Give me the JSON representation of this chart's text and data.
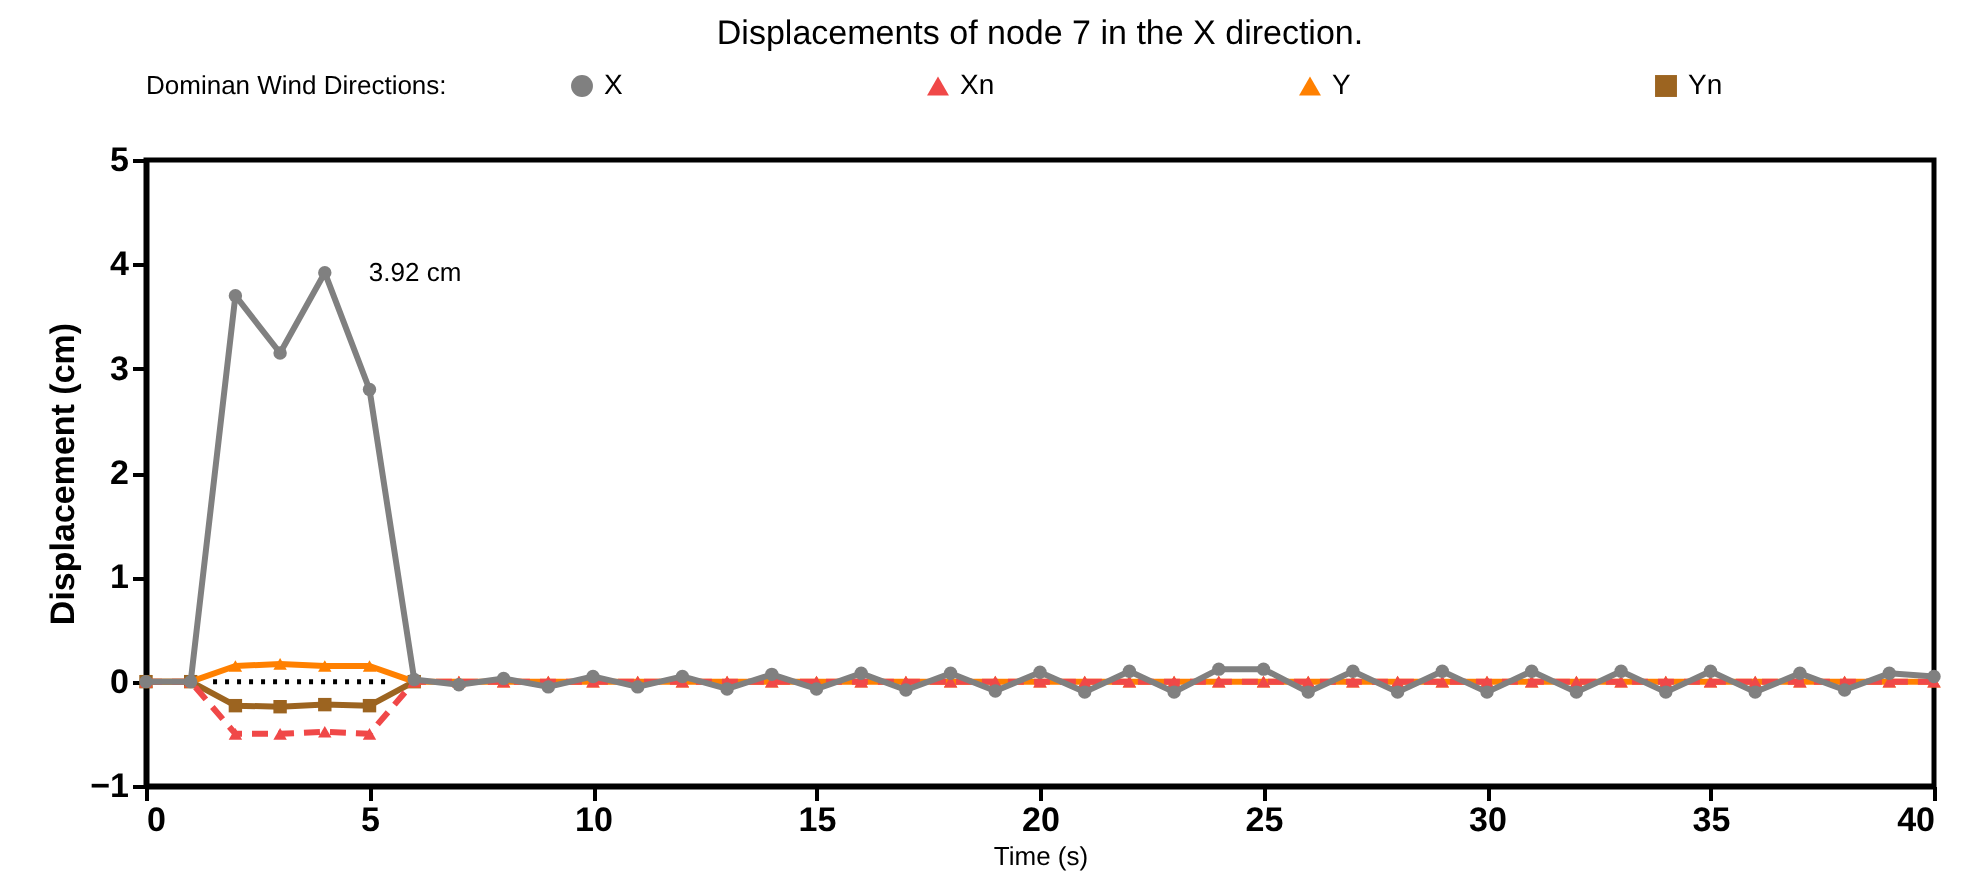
{
  "chart_data": {
    "type": "line",
    "title": "Displacements of node 7 in the X direction.",
    "xlabel": "Time (s)",
    "ylabel": "Displacement (cm)",
    "legend_title": "Dominan Wind Directions:",
    "x": [
      0,
      1,
      2,
      3,
      4,
      5,
      6,
      7,
      8,
      9,
      10,
      11,
      12,
      13,
      14,
      15,
      16,
      17,
      18,
      19,
      20,
      21,
      22,
      23,
      24,
      25,
      26,
      27,
      28,
      29,
      30,
      31,
      32,
      33,
      34,
      35,
      36,
      37,
      38,
      39,
      40
    ],
    "series": [
      {
        "name": "X",
        "color": "#808080",
        "marker": "circle",
        "line_style": "solid",
        "values": [
          0,
          0,
          3.7,
          3.15,
          3.92,
          2.8,
          0.02,
          -0.03,
          0.03,
          -0.05,
          0.05,
          -0.05,
          0.05,
          -0.07,
          0.07,
          -0.07,
          0.08,
          -0.08,
          0.08,
          -0.09,
          0.09,
          -0.1,
          0.1,
          -0.1,
          0.12,
          0.12,
          -0.1,
          0.1,
          -0.1,
          0.1,
          -0.1,
          0.1,
          -0.1,
          0.1,
          -0.1,
          0.1,
          -0.1,
          0.08,
          -0.08,
          0.08,
          0.05
        ]
      },
      {
        "name": "Xn",
        "color": "#f04848",
        "marker": "triangle",
        "line_style": "dashed",
        "values": [
          0,
          0,
          -0.5,
          -0.5,
          -0.48,
          -0.5,
          0,
          0,
          0,
          0,
          0,
          0,
          0,
          0,
          0,
          0,
          0,
          0,
          0,
          0,
          0,
          0,
          0,
          0,
          0,
          0,
          0,
          0,
          0,
          0,
          0,
          0,
          0,
          0,
          0,
          0,
          0,
          0,
          0,
          0,
          0
        ]
      },
      {
        "name": "Y",
        "color": "#ff8000",
        "marker": "triangle",
        "line_style": "solid",
        "values": [
          0,
          0,
          0.15,
          0.17,
          0.15,
          0.15,
          0,
          0,
          0,
          0,
          0,
          0,
          0,
          0,
          0,
          0,
          0,
          0,
          0,
          0,
          0,
          0,
          0,
          0,
          0,
          0,
          0,
          0,
          0,
          0,
          0,
          0,
          0,
          0,
          0,
          0,
          0,
          0,
          0,
          0,
          0
        ]
      },
      {
        "name": "Yn",
        "color": "#9c6420",
        "marker": "square",
        "line_style": "solid",
        "values": [
          0,
          0,
          -0.23,
          -0.24,
          -0.22,
          -0.23,
          0,
          null,
          null,
          null,
          null,
          null,
          null,
          null,
          null,
          null,
          null,
          null,
          null,
          null,
          null,
          null,
          null,
          null,
          null,
          null,
          null,
          null,
          null,
          null,
          null,
          null,
          null,
          null,
          null,
          null,
          null,
          null,
          null,
          null,
          null
        ]
      },
      {
        "color": "#000000",
        "marker": "none",
        "line_style": "dotted",
        "x": [
          1.5,
          5.5
        ],
        "values": [
          0,
          0
        ]
      }
    ],
    "annotations": [
      {
        "text": "3.92 cm",
        "x": 4,
        "y": 3.92
      }
    ],
    "xlim": [
      0,
      40
    ],
    "xticks": [
      0,
      5,
      10,
      15,
      20,
      25,
      30,
      35,
      40
    ],
    "ylim": [
      -1,
      5
    ],
    "yticks": [
      -1,
      0,
      1,
      2,
      3,
      4,
      5
    ],
    "grid": false,
    "legend": "top"
  }
}
